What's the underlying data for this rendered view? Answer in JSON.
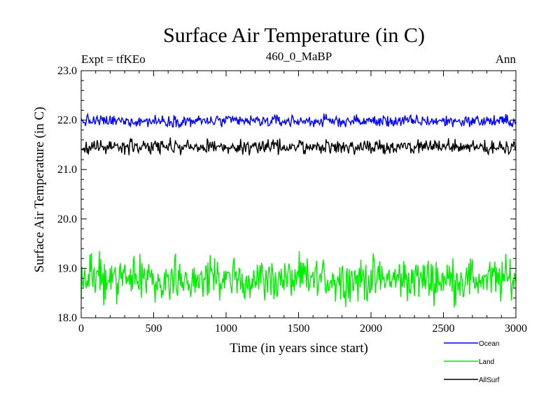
{
  "chart_data": {
    "type": "line",
    "title": "Surface Air Temperature (in C)",
    "subtitle_left": "Expt = tfKEo",
    "subtitle_center": "460_0_MaBP",
    "subtitle_right": "Ann",
    "xlabel": "Time (in years since start)",
    "ylabel": "Surface Air Temperature (in C)",
    "xlim": [
      0,
      3000
    ],
    "ylim": [
      18.0,
      23.0
    ],
    "x_ticks": [
      0,
      500,
      1000,
      1500,
      2000,
      2500,
      3000
    ],
    "x_tick_labels": [
      "0",
      "500",
      "1000",
      "1500",
      "2000",
      "2500",
      "3000"
    ],
    "y_ticks": [
      18.0,
      19.0,
      20.0,
      21.0,
      22.0,
      23.0
    ],
    "y_tick_labels": [
      "18.0",
      "19.0",
      "20.0",
      "21.0",
      "22.0",
      "23.0"
    ],
    "grid": false,
    "legend_position": "below-right",
    "series": [
      {
        "name": "Ocean",
        "color": "#0000ff",
        "mean": 21.98,
        "min": 21.86,
        "max": 22.16,
        "sample_step_years": 5
      },
      {
        "name": "Land",
        "color": "#00ee00",
        "mean": 18.78,
        "min": 18.15,
        "max": 19.35,
        "sample_step_years": 5
      },
      {
        "name": "AllSurf",
        "color": "#000000",
        "mean": 21.46,
        "min": 21.25,
        "max": 21.65,
        "sample_step_years": 5
      }
    ]
  }
}
